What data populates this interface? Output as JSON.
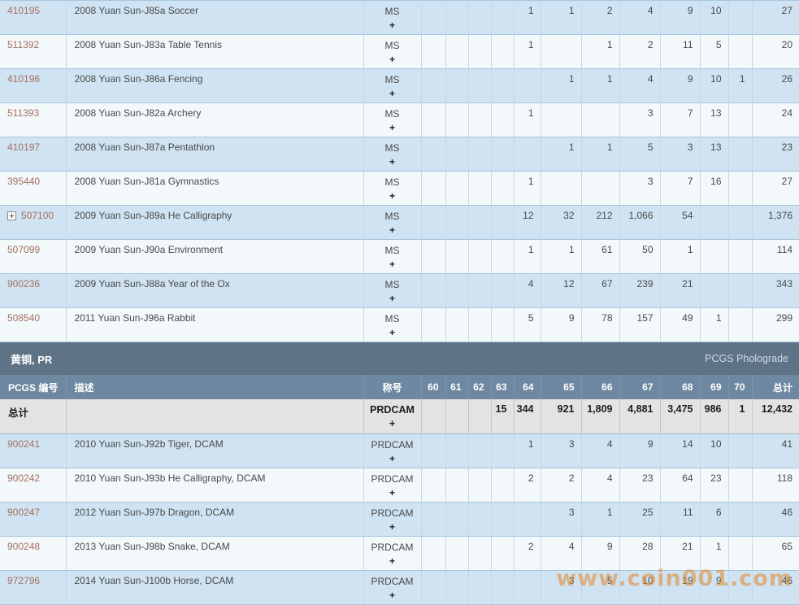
{
  "section_ms": {
    "rows": [
      {
        "pcgs": "410195",
        "desc": "2008 Yuan Sun-J85a Soccer",
        "designation": "MS",
        "plus": "+",
        "expand": false,
        "grades": [
          "",
          "",
          "",
          "",
          "1",
          "1",
          "2",
          "4",
          "9",
          "10",
          "",
          "27"
        ]
      },
      {
        "pcgs": "511392",
        "desc": "2008 Yuan Sun-J83a Table Tennis",
        "designation": "MS",
        "plus": "+",
        "expand": false,
        "grades": [
          "",
          "",
          "",
          "",
          "1",
          "",
          "1",
          "2",
          "11",
          "5",
          "",
          "20"
        ]
      },
      {
        "pcgs": "410196",
        "desc": "2008 Yuan Sun-J86a Fencing",
        "designation": "MS",
        "plus": "+",
        "expand": false,
        "grades": [
          "",
          "",
          "",
          "",
          "",
          "1",
          "1",
          "4",
          "9",
          "10",
          "1",
          "26"
        ]
      },
      {
        "pcgs": "511393",
        "desc": "2008 Yuan Sun-J82a Archery",
        "designation": "MS",
        "plus": "+",
        "expand": false,
        "grades": [
          "",
          "",
          "",
          "",
          "1",
          "",
          "",
          "3",
          "7",
          "13",
          "",
          "24"
        ]
      },
      {
        "pcgs": "410197",
        "desc": "2008 Yuan Sun-J87a Pentathlon",
        "designation": "MS",
        "plus": "+",
        "expand": false,
        "grades": [
          "",
          "",
          "",
          "",
          "",
          "1",
          "1",
          "5",
          "3",
          "13",
          "",
          "23"
        ]
      },
      {
        "pcgs": "395440",
        "desc": "2008 Yuan Sun-J81a Gymnastics",
        "designation": "MS",
        "plus": "+",
        "expand": false,
        "grades": [
          "",
          "",
          "",
          "",
          "1",
          "",
          "",
          "3",
          "7",
          "16",
          "",
          "27"
        ]
      },
      {
        "pcgs": "507100",
        "desc": "2009 Yuan Sun-J89a He Calligraphy",
        "designation": "MS",
        "plus": "+",
        "expand": true,
        "grades": [
          "",
          "",
          "",
          "",
          "12",
          "32",
          "212",
          "1,066",
          "54",
          "",
          "",
          "1,376"
        ]
      },
      {
        "pcgs": "507099",
        "desc": "2009 Yuan Sun-J90a Environment",
        "designation": "MS",
        "plus": "+",
        "expand": false,
        "grades": [
          "",
          "",
          "",
          "",
          "1",
          "1",
          "61",
          "50",
          "1",
          "",
          "",
          "114"
        ]
      },
      {
        "pcgs": "900236",
        "desc": "2009 Yuan Sun-J88a Year of the Ox",
        "designation": "MS",
        "plus": "+",
        "expand": false,
        "grades": [
          "",
          "",
          "",
          "",
          "4",
          "12",
          "67",
          "239",
          "21",
          "",
          "",
          "343"
        ]
      },
      {
        "pcgs": "508540",
        "desc": "2011 Yuan Sun-J96a Rabbit",
        "designation": "MS",
        "plus": "+",
        "expand": false,
        "grades": [
          "",
          "",
          "",
          "",
          "5",
          "9",
          "78",
          "157",
          "49",
          "1",
          "",
          "299"
        ]
      }
    ]
  },
  "section_pr": {
    "band_title": "黄铜, PR",
    "band_right": "PCGS Pholograde",
    "header": {
      "pcgs": "PCGS 编号",
      "desc": "描述",
      "designation": "称号",
      "grades": [
        "60",
        "61",
        "62",
        "63",
        "64",
        "65",
        "66",
        "67",
        "68",
        "69",
        "70",
        "总计"
      ]
    },
    "totals": {
      "label": "总计",
      "designation": "PRDCAM",
      "plus": "+",
      "grades": [
        "",
        "",
        "",
        "15",
        "344",
        "921",
        "1,809",
        "4,881",
        "3,475",
        "986",
        "1",
        "12,432"
      ]
    },
    "rows": [
      {
        "pcgs": "900241",
        "desc": "2010 Yuan Sun-J92b Tiger, DCAM",
        "designation": "PRDCAM",
        "plus": "+",
        "expand": false,
        "grades": [
          "",
          "",
          "",
          "",
          "1",
          "3",
          "4",
          "9",
          "14",
          "10",
          "",
          "41"
        ]
      },
      {
        "pcgs": "900242",
        "desc": "2010 Yuan Sun-J93b He Calligraphy, DCAM",
        "designation": "PRDCAM",
        "plus": "+",
        "expand": false,
        "grades": [
          "",
          "",
          "",
          "",
          "2",
          "2",
          "4",
          "23",
          "64",
          "23",
          "",
          "118"
        ]
      },
      {
        "pcgs": "900247",
        "desc": "2012 Yuan Sun-J97b Dragon, DCAM",
        "designation": "PRDCAM",
        "plus": "+",
        "expand": false,
        "grades": [
          "",
          "",
          "",
          "",
          "",
          "3",
          "1",
          "25",
          "11",
          "6",
          "",
          "46"
        ]
      },
      {
        "pcgs": "900248",
        "desc": "2013 Yuan Sun-J98b Snake, DCAM",
        "designation": "PRDCAM",
        "plus": "+",
        "expand": false,
        "grades": [
          "",
          "",
          "",
          "",
          "2",
          "4",
          "9",
          "28",
          "21",
          "1",
          "",
          "65"
        ]
      },
      {
        "pcgs": "972796",
        "desc": "2014 Yuan Sun-J100b Horse, DCAM",
        "designation": "PRDCAM",
        "plus": "+",
        "expand": false,
        "grades": [
          "",
          "",
          "",
          "",
          "",
          "3",
          "5",
          "10",
          "19",
          "9",
          "",
          "46"
        ]
      }
    ]
  },
  "watermark": "www.coin001.com",
  "colors": {
    "band_bg": "#5e7386",
    "header_bg": "#6e88a1",
    "row_blue": "#cfe3f2",
    "row_light": "#f3f8fb",
    "totals_bg": "#e3e3e3",
    "pcgs_link": "#a5705e",
    "watermark_orange": "#e38628"
  }
}
